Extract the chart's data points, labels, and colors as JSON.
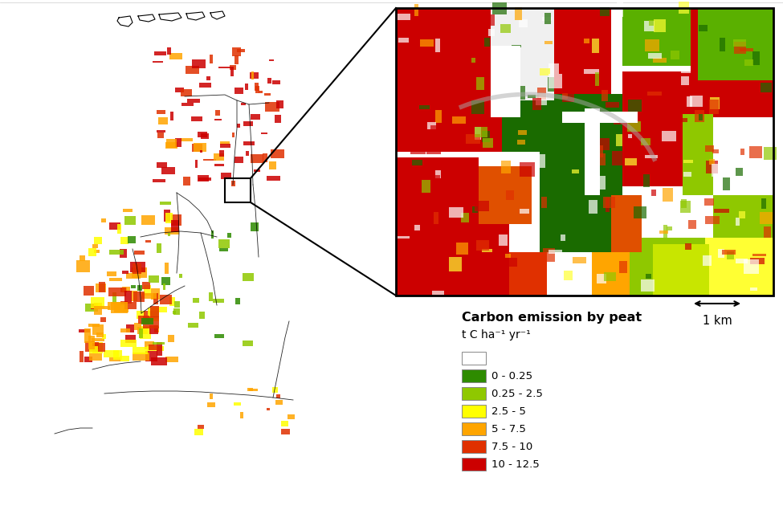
{
  "legend_title": "Carbon emission by peat",
  "legend_subtitle": "t C ha⁻¹ yr⁻¹",
  "legend_colors": [
    "#ffffff",
    "#2e8b00",
    "#8fc800",
    "#ffff00",
    "#ffa500",
    "#e03000",
    "#cc0000"
  ],
  "legend_labels": [
    "",
    "0 - 0.25",
    "0.25 - 2.5",
    "2.5 - 5",
    "5 - 7.5",
    "7.5 - 10",
    "10 - 12.5"
  ],
  "scale_bar_label": "1 km",
  "background_color": "#ffffff"
}
